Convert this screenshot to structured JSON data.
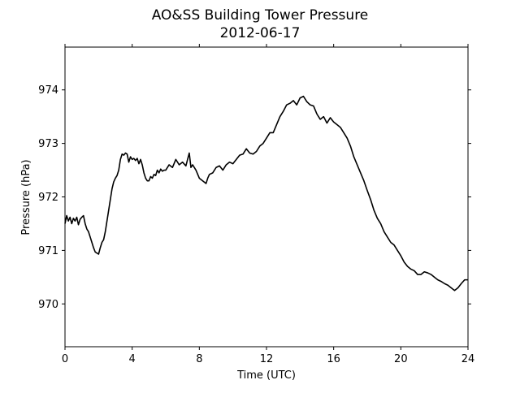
{
  "chart_data": {
    "type": "line",
    "title": "AO&SS Building Tower Pressure",
    "subtitle": "2012-06-17",
    "xlabel": "Time (UTC)",
    "ylabel": "Pressure (hPa)",
    "xlim": [
      0,
      24
    ],
    "ylim": [
      969.2,
      974.8
    ],
    "xticks": [
      0,
      4,
      8,
      12,
      16,
      20,
      24
    ],
    "yticks": [
      970,
      971,
      972,
      973,
      974
    ],
    "grid": false,
    "line_color": "#000000",
    "series": [
      {
        "x": [
          0,
          0.1,
          0.2,
          0.3,
          0.4,
          0.5,
          0.6,
          0.7,
          0.8,
          0.9,
          1.0,
          1.1,
          1.2,
          1.3,
          1.4,
          1.5,
          1.6,
          1.7,
          1.8,
          1.9,
          2.0,
          2.1,
          2.2,
          2.3,
          2.4,
          2.5,
          2.6,
          2.7,
          2.8,
          2.9,
          3.0,
          3.1,
          3.2,
          3.3,
          3.4,
          3.5,
          3.6,
          3.7,
          3.8,
          3.9,
          4.0,
          4.1,
          4.2,
          4.3,
          4.4,
          4.5,
          4.6,
          4.7,
          4.8,
          4.9,
          5.0,
          5.1,
          5.2,
          5.3,
          5.4,
          5.5,
          5.6,
          5.7,
          5.8,
          5.9,
          6.0,
          6.2,
          6.4,
          6.6,
          6.8,
          7.0,
          7.2,
          7.4,
          7.5,
          7.6,
          7.8,
          8.0,
          8.2,
          8.4,
          8.5,
          8.6,
          8.8,
          9.0,
          9.2,
          9.4,
          9.6,
          9.8,
          10.0,
          10.2,
          10.4,
          10.6,
          10.8,
          11.0,
          11.2,
          11.4,
          11.6,
          11.8,
          12.0,
          12.2,
          12.4,
          12.6,
          12.8,
          13.0,
          13.2,
          13.4,
          13.6,
          13.8,
          14.0,
          14.2,
          14.4,
          14.6,
          14.8,
          15.0,
          15.2,
          15.4,
          15.6,
          15.8,
          16.0,
          16.2,
          16.4,
          16.6,
          16.8,
          17.0,
          17.2,
          17.4,
          17.6,
          17.8,
          18.0,
          18.2,
          18.4,
          18.6,
          18.8,
          19.0,
          19.2,
          19.4,
          19.6,
          19.8,
          20.0,
          20.2,
          20.4,
          20.6,
          20.8,
          21.0,
          21.2,
          21.4,
          21.6,
          21.8,
          22.0,
          22.2,
          22.4,
          22.6,
          22.8,
          23.0,
          23.2,
          23.4,
          23.6,
          23.8,
          24.0
        ],
        "values": [
          971.5,
          971.65,
          971.55,
          971.62,
          971.5,
          971.6,
          971.55,
          971.62,
          971.48,
          971.58,
          971.62,
          971.65,
          971.5,
          971.4,
          971.35,
          971.25,
          971.15,
          971.05,
          970.97,
          970.95,
          970.93,
          971.05,
          971.15,
          971.2,
          971.35,
          971.55,
          971.75,
          971.95,
          972.15,
          972.28,
          972.35,
          972.4,
          972.5,
          972.7,
          972.8,
          972.78,
          972.82,
          972.8,
          972.65,
          972.75,
          972.7,
          972.72,
          972.68,
          972.72,
          972.62,
          972.7,
          972.6,
          972.45,
          972.35,
          972.3,
          972.3,
          972.38,
          972.35,
          972.42,
          972.4,
          972.5,
          972.45,
          972.52,
          972.48,
          972.5,
          972.5,
          972.6,
          972.55,
          972.7,
          972.6,
          972.65,
          972.58,
          972.82,
          972.55,
          972.6,
          972.5,
          972.35,
          972.3,
          972.25,
          972.35,
          972.42,
          972.45,
          972.55,
          972.58,
          972.5,
          972.6,
          972.65,
          972.62,
          972.7,
          972.78,
          972.8,
          972.9,
          972.82,
          972.8,
          972.85,
          972.95,
          973.0,
          973.1,
          973.2,
          973.2,
          973.35,
          973.5,
          973.6,
          973.72,
          973.75,
          973.8,
          973.72,
          973.85,
          973.88,
          973.78,
          973.72,
          973.7,
          973.55,
          973.45,
          973.5,
          973.38,
          973.48,
          973.4,
          973.35,
          973.3,
          973.2,
          973.1,
          972.95,
          972.75,
          972.6,
          972.45,
          972.3,
          972.12,
          971.95,
          971.75,
          971.6,
          971.5,
          971.35,
          971.25,
          971.15,
          971.1,
          971.0,
          970.9,
          970.78,
          970.7,
          970.65,
          970.62,
          970.55,
          970.55,
          970.6,
          970.58,
          970.55,
          970.5,
          970.45,
          970.42,
          970.38,
          970.35,
          970.3,
          970.25,
          970.3,
          970.38,
          970.45,
          970.45
        ]
      }
    ]
  }
}
